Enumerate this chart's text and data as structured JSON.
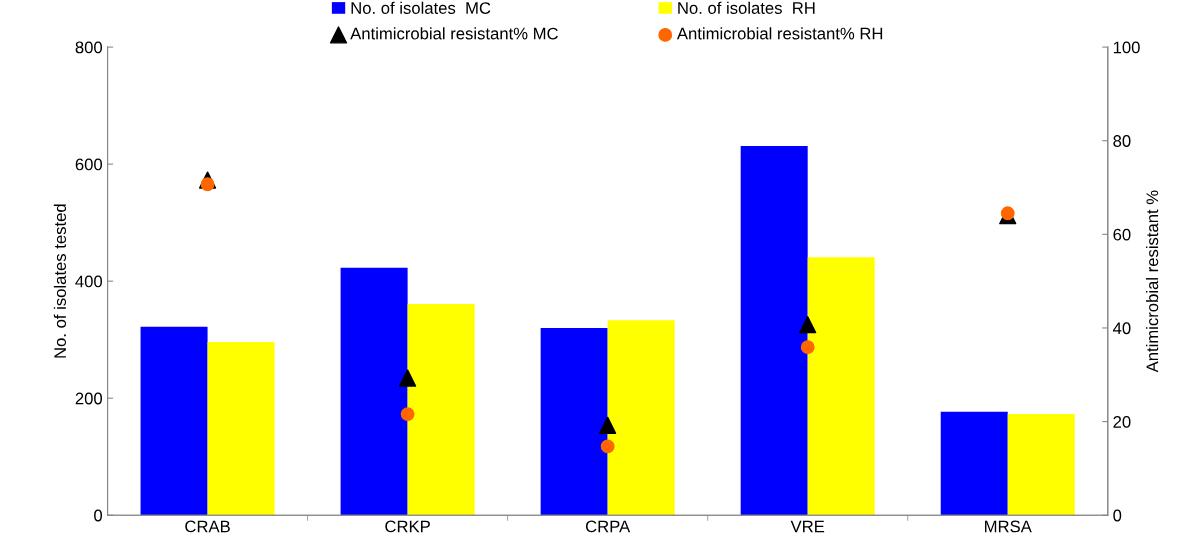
{
  "chart_data": {
    "type": "bar",
    "categories": [
      "CRAB",
      "CRKP",
      "CRPA",
      "VRE",
      "MRSA"
    ],
    "ylabel": "No. of isolates tested",
    "y2label": "Antimicrobial resistant %",
    "ylim": [
      0,
      800
    ],
    "yticks": [
      0,
      200,
      400,
      600,
      800
    ],
    "y2lim": [
      0,
      100
    ],
    "y2ticks": [
      0,
      20,
      40,
      60,
      80,
      100
    ],
    "legend": "top",
    "grid": false,
    "series": [
      {
        "name": "No. of isolates  MC",
        "color": "#0000ff",
        "values": [
          322,
          423,
          320,
          631,
          177
        ]
      },
      {
        "name": "No. of isolates  RH",
        "color": "#ffff00",
        "values": [
          296,
          361,
          333,
          441,
          173
        ]
      },
      {
        "name": "Antimicrobial resistant% MC",
        "type": "scatter",
        "axis": "y2",
        "marker": "triangle",
        "color": "#000000",
        "values": [
          71.6,
          29.3,
          19.2,
          40.7,
          64.0
        ]
      },
      {
        "name": "Antimicrobial resistant% RH",
        "type": "scatter",
        "axis": "y2",
        "marker": "circle",
        "color": "#ff6600",
        "values": [
          70.7,
          21.6,
          14.7,
          35.9,
          64.5
        ]
      }
    ]
  }
}
